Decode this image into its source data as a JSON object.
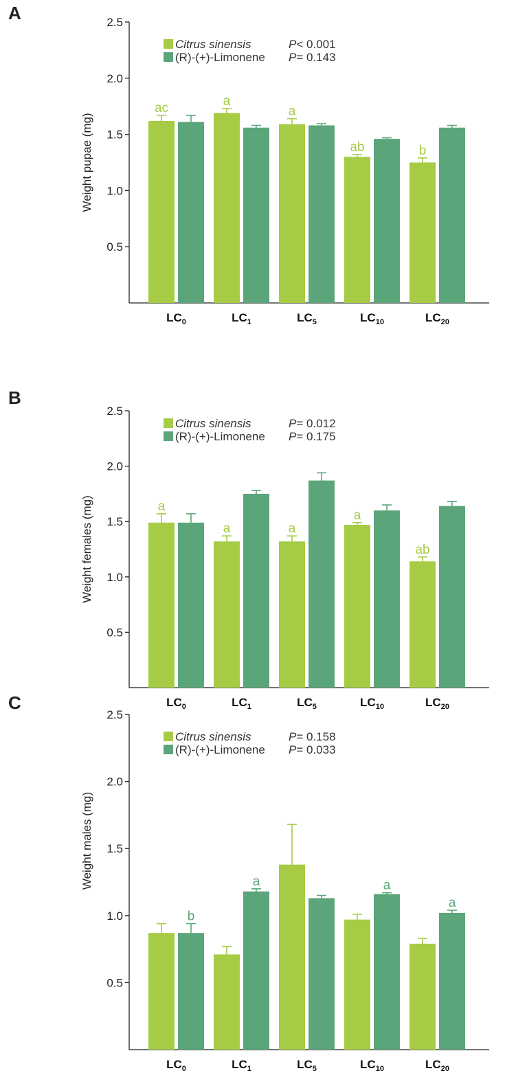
{
  "colors": {
    "series1": "#a6cb45",
    "series2": "#5ba57a",
    "axis": "#222222"
  },
  "chart_data": [
    {
      "panel": "A",
      "type": "bar",
      "ylabel": "Weight pupae (mg)",
      "ylim": [
        0,
        2.5
      ],
      "yticks": [
        0.5,
        1.0,
        1.5,
        2.0,
        2.5
      ],
      "ytick_labels": [
        "0.5",
        "1.0",
        "1.5",
        "2.0",
        "2.5"
      ],
      "categories": [
        {
          "base": "LC",
          "sub": "0"
        },
        {
          "base": "LC",
          "sub": "1"
        },
        {
          "base": "LC",
          "sub": "5"
        },
        {
          "base": "LC",
          "sub": "10"
        },
        {
          "base": "LC",
          "sub": "20"
        }
      ],
      "legend": [
        {
          "name": "Citrus sinensis",
          "italic": true,
          "p_label": "P",
          "p_value": "< 0.001"
        },
        {
          "name": "(R)-(+)-Limonene",
          "italic": false,
          "p_label": "P",
          "p_value": "= 0.143"
        }
      ],
      "series": [
        {
          "name": "Citrus sinensis",
          "values": [
            1.62,
            1.69,
            1.59,
            1.3,
            1.25
          ],
          "errors": [
            0.05,
            0.04,
            0.05,
            0.02,
            0.04
          ],
          "letters": [
            "ac",
            "a",
            "a",
            "ab",
            "b"
          ]
        },
        {
          "name": "(R)-(+)-Limonene",
          "values": [
            1.61,
            1.56,
            1.58,
            1.46,
            1.56
          ],
          "errors": [
            0.06,
            0.02,
            0.015,
            0.01,
            0.02
          ],
          "letters": [
            "",
            "",
            "",
            "",
            ""
          ]
        }
      ]
    },
    {
      "panel": "B",
      "type": "bar",
      "ylabel": "Weight females (mg)",
      "ylim": [
        0,
        2.5
      ],
      "yticks": [
        0.5,
        1.0,
        1.5,
        2.0,
        2.5
      ],
      "ytick_labels": [
        "0.5",
        "1.0",
        "1.5",
        "2.0",
        "2.5"
      ],
      "categories": [
        {
          "base": "LC",
          "sub": "0"
        },
        {
          "base": "LC",
          "sub": "1"
        },
        {
          "base": "LC",
          "sub": "5"
        },
        {
          "base": "LC",
          "sub": "10"
        },
        {
          "base": "LC",
          "sub": "20"
        }
      ],
      "legend": [
        {
          "name": "Citrus sinensis",
          "italic": true,
          "p_label": "P",
          "p_value": "= 0.012"
        },
        {
          "name": "(R)-(+)-Limonene",
          "italic": false,
          "p_label": "P",
          "p_value": "= 0.175"
        }
      ],
      "series": [
        {
          "name": "Citrus sinensis",
          "values": [
            1.49,
            1.32,
            1.32,
            1.47,
            1.14
          ],
          "errors": [
            0.08,
            0.05,
            0.05,
            0.02,
            0.04
          ],
          "letters": [
            "a",
            "a",
            "a",
            "a",
            "ab"
          ]
        },
        {
          "name": "(R)-(+)-Limonene",
          "values": [
            1.49,
            1.75,
            1.87,
            1.6,
            1.64
          ],
          "errors": [
            0.08,
            0.03,
            0.07,
            0.05,
            0.04
          ],
          "letters": [
            "",
            "",
            "",
            "",
            ""
          ]
        }
      ]
    },
    {
      "panel": "C",
      "type": "bar",
      "ylabel": "Weight males (mg)",
      "ylim": [
        0,
        2.5
      ],
      "yticks": [
        0.5,
        1.0,
        1.5,
        2.0,
        2.5
      ],
      "ytick_labels": [
        "0.5",
        "1.0",
        "1.5",
        "2.0",
        "2.5"
      ],
      "categories": [
        {
          "base": "LC",
          "sub": "0"
        },
        {
          "base": "LC",
          "sub": "1"
        },
        {
          "base": "LC",
          "sub": "5"
        },
        {
          "base": "LC",
          "sub": "10"
        },
        {
          "base": "LC",
          "sub": "20"
        }
      ],
      "legend": [
        {
          "name": "Citrus sinensis",
          "italic": true,
          "p_label": "P",
          "p_value": "= 0.158"
        },
        {
          "name": "(R)-(+)-Limonene",
          "italic": false,
          "p_label": "P",
          "p_value": "= 0.033"
        }
      ],
      "series": [
        {
          "name": "Citrus sinensis",
          "values": [
            0.87,
            0.71,
            1.38,
            0.97,
            0.79
          ],
          "errors": [
            0.07,
            0.06,
            0.3,
            0.04,
            0.04
          ],
          "letters": [
            "",
            "",
            "",
            "",
            ""
          ]
        },
        {
          "name": "(R)-(+)-Limonene",
          "values": [
            0.87,
            1.18,
            1.13,
            1.16,
            1.02
          ],
          "errors": [
            0.07,
            0.02,
            0.02,
            0.01,
            0.02
          ],
          "letters": [
            "b",
            "a",
            "",
            "a",
            "a"
          ]
        }
      ]
    }
  ]
}
